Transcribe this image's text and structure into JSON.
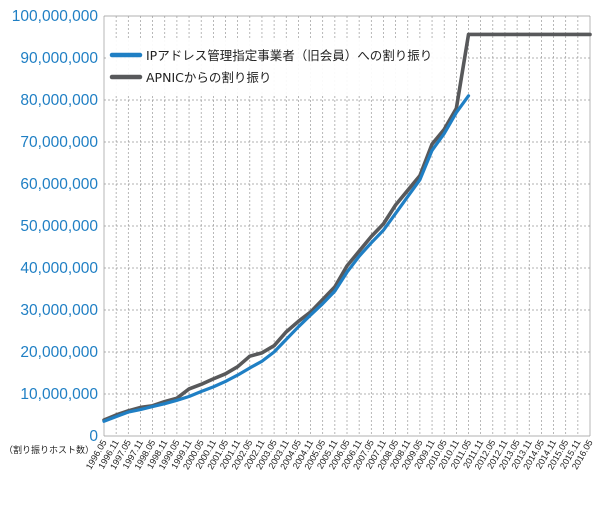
{
  "chart_data": {
    "type": "line",
    "y_unit_label": "（割り振りホスト数）",
    "ylim": [
      0,
      100000000
    ],
    "y_ticks": [
      "0",
      "10,000,000",
      "20,000,000",
      "30,000,000",
      "40,000,000",
      "50,000,000",
      "60,000,000",
      "70,000,000",
      "80,000,000",
      "90,000,000",
      "100,000,000"
    ],
    "x_ticks": [
      "1996.05",
      "1996.11",
      "1997.05",
      "1997.11",
      "1998.05",
      "1998.11",
      "1999.05",
      "1999.11",
      "2000.05",
      "2000.11",
      "2001.05",
      "2001.11",
      "2002.05",
      "2002.11",
      "2003.05",
      "2003.11",
      "2004.05",
      "2004.11",
      "2005.05",
      "2005.11",
      "2006.05",
      "2006.11",
      "2007.05",
      "2007.11",
      "2008.05",
      "2008.11",
      "2009.05",
      "2009.11",
      "2010.05",
      "2010.11",
      "2011.05",
      "2011.11",
      "2012.05",
      "2012.11",
      "2013.05",
      "2013.11",
      "2014.05",
      "2014.11",
      "2015.05",
      "2015.11",
      "2016.05"
    ],
    "grid": true,
    "legend_position": "top-left",
    "colors": {
      "series1": "#1f7fc4",
      "series2": "#58595b",
      "axis_text": "#1f7fc4"
    },
    "series": [
      {
        "name": "IPアドレス管理指定事業者（旧会員）への割り振り",
        "x": [
          "1996.05",
          "1996.11",
          "1997.05",
          "1997.11",
          "1998.05",
          "1998.11",
          "1999.05",
          "1999.11",
          "2000.05",
          "2000.11",
          "2001.05",
          "2001.11",
          "2002.05",
          "2002.11",
          "2003.05",
          "2003.11",
          "2004.05",
          "2004.11",
          "2005.05",
          "2005.11",
          "2006.05",
          "2006.11",
          "2007.05",
          "2007.11",
          "2008.05",
          "2008.11",
          "2009.05",
          "2009.11",
          "2010.05",
          "2010.11",
          "2011.05"
        ],
        "values": [
          3500000,
          4600000,
          5700000,
          6300000,
          7000000,
          7700000,
          8500000,
          9400000,
          10600000,
          11700000,
          13000000,
          14500000,
          16200000,
          17800000,
          20000000,
          23000000,
          26000000,
          28800000,
          31500000,
          34500000,
          39000000,
          42800000,
          46000000,
          49000000,
          53000000,
          57000000,
          61000000,
          68000000,
          72000000,
          77000000,
          81000000
        ]
      },
      {
        "name": "APNICからの割り振り",
        "x": [
          "1996.05",
          "1996.11",
          "1997.05",
          "1997.11",
          "1998.05",
          "1998.11",
          "1999.05",
          "1999.11",
          "2000.05",
          "2000.11",
          "2001.05",
          "2001.11",
          "2002.05",
          "2002.11",
          "2003.05",
          "2003.11",
          "2004.05",
          "2004.11",
          "2005.05",
          "2005.11",
          "2006.05",
          "2006.11",
          "2007.05",
          "2007.11",
          "2008.05",
          "2008.11",
          "2009.05",
          "2009.11",
          "2010.05",
          "2010.11",
          "2011.05",
          "2011.11",
          "2012.05",
          "2012.11",
          "2013.05",
          "2013.11",
          "2014.05",
          "2014.11",
          "2015.05",
          "2015.11",
          "2016.05"
        ],
        "values": [
          3800000,
          5000000,
          6000000,
          6800000,
          7200000,
          8200000,
          9000000,
          11200000,
          12300000,
          13600000,
          14800000,
          16500000,
          19000000,
          19800000,
          21500000,
          24800000,
          27300000,
          29500000,
          32500000,
          35500000,
          40500000,
          44000000,
          47500000,
          50500000,
          55000000,
          58500000,
          62000000,
          69500000,
          73000000,
          78000000,
          95600000,
          95600000,
          95600000,
          95600000,
          95600000,
          95600000,
          95600000,
          95600000,
          95600000,
          95600000,
          95600000
        ]
      }
    ]
  }
}
